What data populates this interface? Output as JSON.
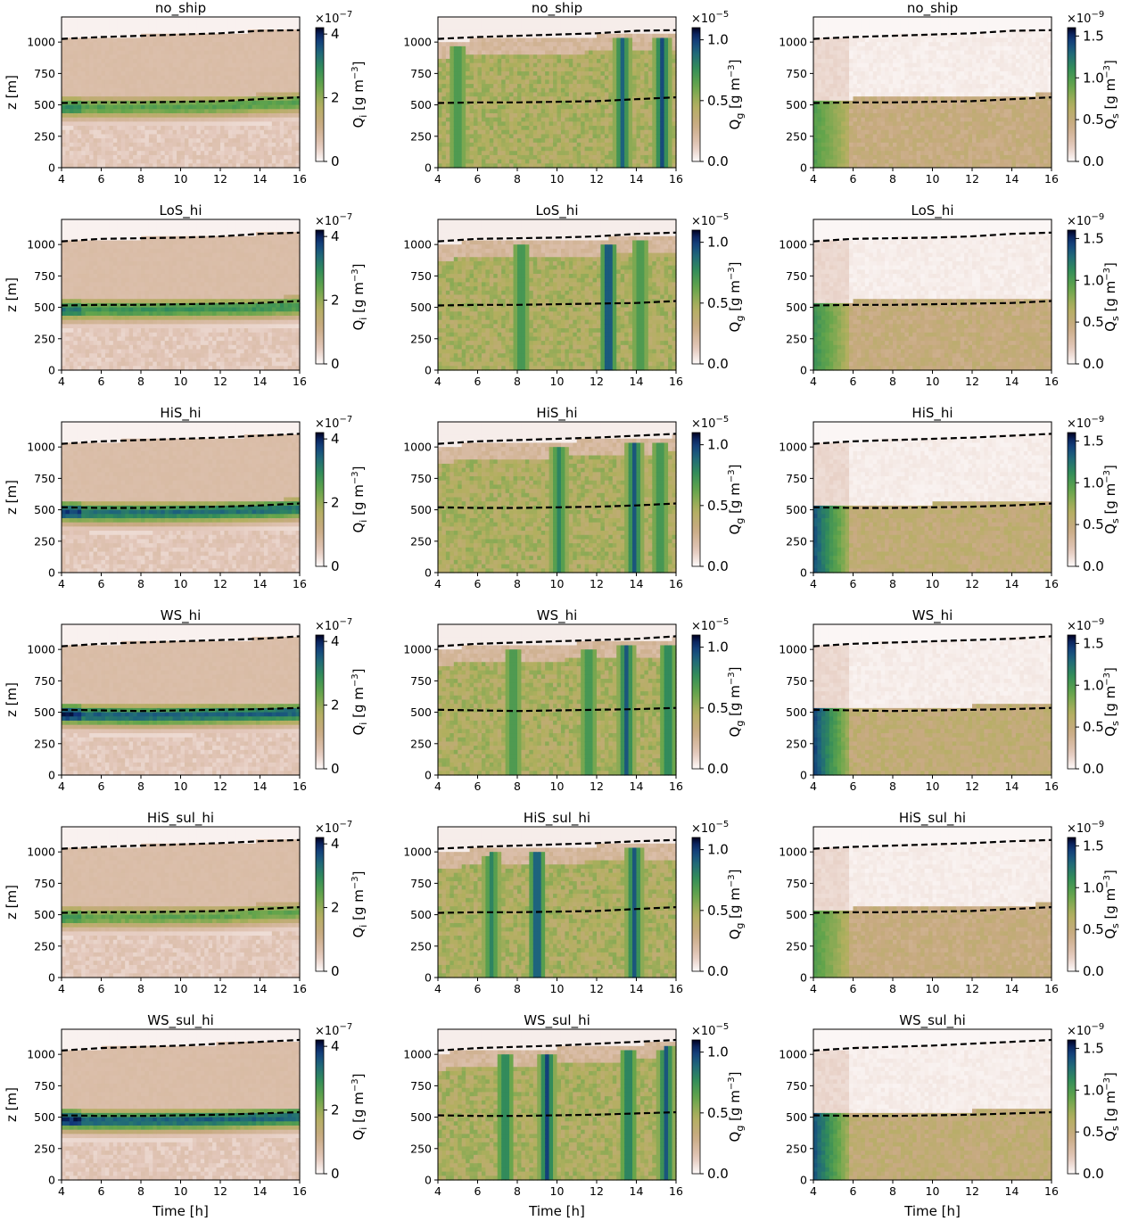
{
  "chart_data": {
    "type": "heatmap",
    "layout": {
      "rows": 6,
      "cols": 3
    },
    "xlabel": "Time [h]",
    "ylabel": "z [m]",
    "x_ticks": [
      4,
      6,
      8,
      10,
      12,
      14,
      16
    ],
    "y_ticks": [
      0,
      250,
      500,
      750,
      1000
    ],
    "xlim": [
      4,
      16
    ],
    "ylim": [
      0,
      1200
    ],
    "row_titles": [
      "no_ship",
      "LoS_hi",
      "HiS_hi",
      "WS_hi",
      "HiS_sul_hi",
      "WS_sul_hi"
    ],
    "columns": [
      {
        "variable": "Q_i",
        "colorbar_label": "Q",
        "colorbar_sub": "i",
        "colorbar_units": "[g m",
        "colorbar_units_exp": "−3",
        "colorbar_units_close": "]",
        "scale_base": "×10",
        "scale_exp": "−7",
        "cbar_ticks": [
          "0",
          "2",
          "4"
        ],
        "cbar_tick_values": [
          0,
          2,
          4
        ],
        "cbar_max": 4.2
      },
      {
        "variable": "Q_g",
        "colorbar_label": "Q",
        "colorbar_sub": "g",
        "colorbar_units": "[g m",
        "colorbar_units_exp": "−3",
        "colorbar_units_close": "]",
        "scale_base": "×10",
        "scale_exp": "−5",
        "cbar_ticks": [
          "0.0",
          "0.5",
          "1.0"
        ],
        "cbar_tick_values": [
          0,
          0.5,
          1.0
        ],
        "cbar_max": 1.1
      },
      {
        "variable": "Q_s",
        "colorbar_label": "Q",
        "colorbar_sub": "s",
        "colorbar_units": "[g m",
        "colorbar_units_exp": "−3",
        "colorbar_units_close": "]",
        "scale_base": "×10",
        "scale_exp": "−9",
        "cbar_ticks": [
          "0.0",
          "0.5",
          "1.0",
          "1.5"
        ],
        "cbar_tick_values": [
          0,
          0.5,
          1.0,
          1.5
        ],
        "cbar_max": 1.6
      }
    ],
    "dashed_lines": [
      {
        "top": [
          [
            4,
            1025
          ],
          [
            6,
            1040
          ],
          [
            8,
            1050
          ],
          [
            10,
            1060
          ],
          [
            12,
            1070
          ],
          [
            14,
            1090
          ],
          [
            16,
            1095
          ]
        ],
        "base": [
          [
            4,
            515
          ],
          [
            6,
            520
          ],
          [
            8,
            520
          ],
          [
            10,
            525
          ],
          [
            12,
            530
          ],
          [
            14,
            545
          ],
          [
            16,
            560
          ]
        ]
      },
      {
        "top": [
          [
            4,
            1025
          ],
          [
            6,
            1045
          ],
          [
            8,
            1050
          ],
          [
            10,
            1055
          ],
          [
            12,
            1065
          ],
          [
            14,
            1085
          ],
          [
            16,
            1095
          ]
        ],
        "base": [
          [
            4,
            515
          ],
          [
            6,
            520
          ],
          [
            8,
            520
          ],
          [
            10,
            525
          ],
          [
            12,
            530
          ],
          [
            14,
            535
          ],
          [
            16,
            550
          ]
        ]
      },
      {
        "top": [
          [
            4,
            1025
          ],
          [
            6,
            1045
          ],
          [
            8,
            1055
          ],
          [
            10,
            1065
          ],
          [
            12,
            1075
          ],
          [
            14,
            1090
          ],
          [
            16,
            1105
          ]
        ],
        "base": [
          [
            4,
            520
          ],
          [
            6,
            515
          ],
          [
            8,
            515
          ],
          [
            10,
            520
          ],
          [
            12,
            525
          ],
          [
            14,
            535
          ],
          [
            16,
            550
          ]
        ]
      },
      {
        "top": [
          [
            4,
            1025
          ],
          [
            6,
            1045
          ],
          [
            8,
            1055
          ],
          [
            10,
            1065
          ],
          [
            12,
            1075
          ],
          [
            14,
            1085
          ],
          [
            16,
            1105
          ]
        ],
        "base": [
          [
            4,
            520
          ],
          [
            6,
            515
          ],
          [
            8,
            510
          ],
          [
            10,
            515
          ],
          [
            12,
            520
          ],
          [
            14,
            525
          ],
          [
            16,
            535
          ]
        ]
      },
      {
        "top": [
          [
            4,
            1025
          ],
          [
            6,
            1040
          ],
          [
            8,
            1050
          ],
          [
            10,
            1060
          ],
          [
            12,
            1070
          ],
          [
            14,
            1085
          ],
          [
            16,
            1095
          ]
        ],
        "base": [
          [
            4,
            515
          ],
          [
            6,
            520
          ],
          [
            8,
            520
          ],
          [
            10,
            525
          ],
          [
            12,
            530
          ],
          [
            14,
            545
          ],
          [
            16,
            560
          ]
        ]
      },
      {
        "top": [
          [
            4,
            1030
          ],
          [
            6,
            1050
          ],
          [
            8,
            1060
          ],
          [
            10,
            1070
          ],
          [
            12,
            1085
          ],
          [
            14,
            1100
          ],
          [
            16,
            1115
          ]
        ],
        "base": [
          [
            4,
            515
          ],
          [
            6,
            510
          ],
          [
            8,
            510
          ],
          [
            10,
            515
          ],
          [
            12,
            520
          ],
          [
            14,
            530
          ],
          [
            16,
            540
          ]
        ]
      }
    ],
    "ice_intensity": [
      0.72,
      0.8,
      0.95,
      1.0,
      0.68,
      1.0
    ],
    "graupel_spikes": [
      [
        [
          5.0,
          0.45
        ],
        [
          13.3,
          0.75
        ],
        [
          15.3,
          0.85
        ]
      ],
      [
        [
          8.2,
          0.5
        ],
        [
          12.6,
          1.0
        ],
        [
          14.2,
          0.45
        ]
      ],
      [
        [
          10.1,
          0.55
        ],
        [
          13.9,
          0.8
        ],
        [
          15.2,
          0.5
        ]
      ],
      [
        [
          7.8,
          0.45
        ],
        [
          11.6,
          0.5
        ],
        [
          13.5,
          0.8
        ],
        [
          15.6,
          0.65
        ]
      ],
      [
        [
          6.7,
          0.55
        ],
        [
          9.0,
          0.95
        ],
        [
          13.9,
          0.8
        ]
      ],
      [
        [
          7.4,
          0.65
        ],
        [
          9.5,
          0.9
        ],
        [
          13.6,
          0.7
        ],
        [
          15.5,
          0.8
        ]
      ]
    ],
    "snow_intensity": [
      0.55,
      0.65,
      0.95,
      1.0,
      0.55,
      0.95
    ]
  }
}
